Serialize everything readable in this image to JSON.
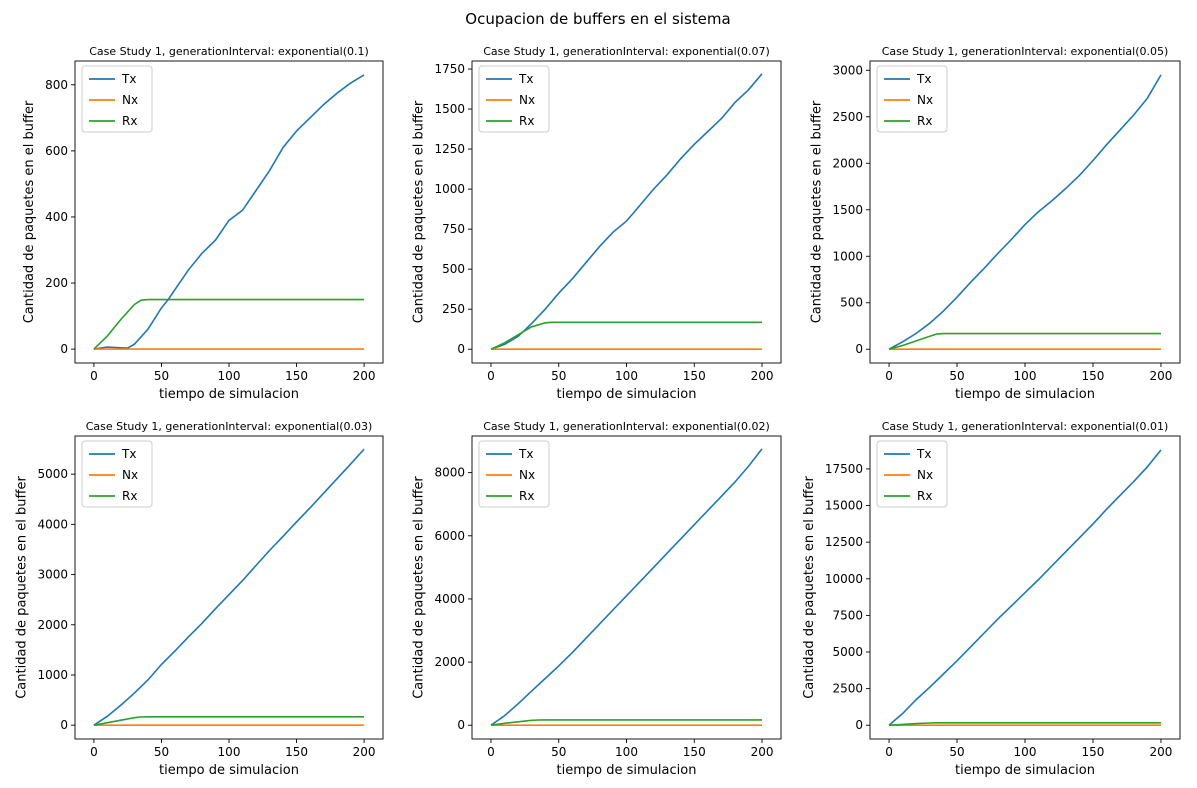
{
  "figure": {
    "title": "Ocupacion de buffers en el sistema"
  },
  "colors": {
    "Tx": "#1f77b4",
    "Nx": "#ff7f0e",
    "Rx": "#2ca02c"
  },
  "chart_data": [
    {
      "type": "line",
      "title": "Case Study 1, generationInterval: exponential(0.1)",
      "xlabel": "tiempo de simulacion",
      "ylabel": "Cantidad de paquetes en el buffer",
      "xlim": [
        -14,
        214
      ],
      "ylim": [
        -42,
        872
      ],
      "xticks": [
        0,
        50,
        100,
        150,
        200
      ],
      "yticks": [
        0,
        200,
        400,
        600,
        800
      ],
      "legend": "top-left",
      "grid": false,
      "series": [
        {
          "name": "Tx",
          "points": [
            [
              0,
              0
            ],
            [
              10,
              6
            ],
            [
              20,
              4
            ],
            [
              25,
              3
            ],
            [
              30,
              15
            ],
            [
              40,
              60
            ],
            [
              50,
              125
            ],
            [
              55,
              150
            ],
            [
              60,
              180
            ],
            [
              70,
              240
            ],
            [
              80,
              290
            ],
            [
              90,
              330
            ],
            [
              100,
              390
            ],
            [
              110,
              420
            ],
            [
              120,
              480
            ],
            [
              130,
              540
            ],
            [
              140,
              610
            ],
            [
              150,
              660
            ],
            [
              160,
              700
            ],
            [
              170,
              740
            ],
            [
              180,
              775
            ],
            [
              190,
              805
            ],
            [
              200,
              830
            ]
          ]
        },
        {
          "name": "Nx",
          "points": [
            [
              0,
              0
            ],
            [
              200,
              0
            ]
          ]
        },
        {
          "name": "Rx",
          "points": [
            [
              0,
              0
            ],
            [
              10,
              40
            ],
            [
              20,
              90
            ],
            [
              30,
              135
            ],
            [
              35,
              148
            ],
            [
              40,
              150
            ],
            [
              200,
              150
            ]
          ]
        }
      ]
    },
    {
      "type": "line",
      "title": "Case Study 1, generationInterval: exponential(0.07)",
      "xlabel": "tiempo de simulacion",
      "ylabel": "Cantidad de paquetes en el buffer",
      "xlim": [
        -14,
        214
      ],
      "ylim": [
        -86,
        1800
      ],
      "xticks": [
        0,
        50,
        100,
        150,
        200
      ],
      "yticks": [
        0,
        250,
        500,
        750,
        1000,
        1250,
        1500,
        1750
      ],
      "legend": "top-left",
      "grid": false,
      "series": [
        {
          "name": "Tx",
          "points": [
            [
              0,
              0
            ],
            [
              10,
              30
            ],
            [
              20,
              80
            ],
            [
              30,
              160
            ],
            [
              40,
              250
            ],
            [
              50,
              350
            ],
            [
              60,
              440
            ],
            [
              70,
              540
            ],
            [
              80,
              640
            ],
            [
              90,
              730
            ],
            [
              100,
              800
            ],
            [
              110,
              900
            ],
            [
              120,
              1000
            ],
            [
              130,
              1090
            ],
            [
              140,
              1190
            ],
            [
              150,
              1280
            ],
            [
              160,
              1360
            ],
            [
              170,
              1440
            ],
            [
              180,
              1540
            ],
            [
              190,
              1620
            ],
            [
              200,
              1720
            ]
          ]
        },
        {
          "name": "Nx",
          "points": [
            [
              0,
              0
            ],
            [
              200,
              0
            ]
          ]
        },
        {
          "name": "Rx",
          "points": [
            [
              0,
              0
            ],
            [
              10,
              40
            ],
            [
              20,
              90
            ],
            [
              30,
              140
            ],
            [
              40,
              165
            ],
            [
              45,
              168
            ],
            [
              200,
              168
            ]
          ]
        }
      ]
    },
    {
      "type": "line",
      "title": "Case Study 1, generationInterval: exponential(0.05)",
      "xlabel": "tiempo de simulacion",
      "ylabel": "Cantidad de paquetes en el buffer",
      "xlim": [
        -14,
        214
      ],
      "ylim": [
        -148,
        3100
      ],
      "xticks": [
        0,
        50,
        100,
        150,
        200
      ],
      "yticks": [
        0,
        500,
        1000,
        1500,
        2000,
        2500,
        3000
      ],
      "legend": "top-left",
      "grid": false,
      "series": [
        {
          "name": "Tx",
          "points": [
            [
              0,
              0
            ],
            [
              10,
              80
            ],
            [
              20,
              170
            ],
            [
              30,
              280
            ],
            [
              40,
              410
            ],
            [
              50,
              560
            ],
            [
              60,
              720
            ],
            [
              70,
              870
            ],
            [
              80,
              1030
            ],
            [
              90,
              1180
            ],
            [
              100,
              1340
            ],
            [
              110,
              1480
            ],
            [
              120,
              1600
            ],
            [
              130,
              1730
            ],
            [
              140,
              1870
            ],
            [
              150,
              2030
            ],
            [
              160,
              2200
            ],
            [
              170,
              2360
            ],
            [
              180,
              2520
            ],
            [
              190,
              2700
            ],
            [
              200,
              2950
            ]
          ]
        },
        {
          "name": "Nx",
          "points": [
            [
              0,
              0
            ],
            [
              200,
              0
            ]
          ]
        },
        {
          "name": "Rx",
          "points": [
            [
              0,
              0
            ],
            [
              10,
              40
            ],
            [
              20,
              90
            ],
            [
              30,
              140
            ],
            [
              35,
              163
            ],
            [
              40,
              168
            ],
            [
              200,
              168
            ]
          ]
        }
      ]
    },
    {
      "type": "line",
      "title": "Case Study 1, generationInterval: exponential(0.03)",
      "xlabel": "tiempo de simulacion",
      "ylabel": "Cantidad de paquetes en el buffer",
      "xlim": [
        -14,
        214
      ],
      "ylim": [
        -275,
        5760
      ],
      "xticks": [
        0,
        50,
        100,
        150,
        200
      ],
      "yticks": [
        0,
        1000,
        2000,
        3000,
        4000,
        5000
      ],
      "legend": "top-left",
      "grid": false,
      "series": [
        {
          "name": "Tx",
          "points": [
            [
              0,
              0
            ],
            [
              10,
              180
            ],
            [
              20,
              400
            ],
            [
              30,
              640
            ],
            [
              40,
              900
            ],
            [
              50,
              1210
            ],
            [
              60,
              1480
            ],
            [
              70,
              1760
            ],
            [
              80,
              2030
            ],
            [
              90,
              2320
            ],
            [
              100,
              2600
            ],
            [
              110,
              2880
            ],
            [
              120,
              3180
            ],
            [
              130,
              3480
            ],
            [
              140,
              3760
            ],
            [
              150,
              4050
            ],
            [
              160,
              4330
            ],
            [
              170,
              4620
            ],
            [
              180,
              4910
            ],
            [
              190,
              5200
            ],
            [
              200,
              5500
            ]
          ]
        },
        {
          "name": "Nx",
          "points": [
            [
              0,
              0
            ],
            [
              200,
              0
            ]
          ]
        },
        {
          "name": "Rx",
          "points": [
            [
              0,
              0
            ],
            [
              10,
              50
            ],
            [
              20,
              100
            ],
            [
              30,
              150
            ],
            [
              35,
              163
            ],
            [
              40,
              168
            ],
            [
              200,
              168
            ]
          ]
        }
      ]
    },
    {
      "type": "line",
      "title": "Case Study 1, generationInterval: exponential(0.02)",
      "xlabel": "tiempo de simulacion",
      "ylabel": "Cantidad de paquetes en el buffer",
      "xlim": [
        -14,
        214
      ],
      "ylim": [
        -436,
        9160
      ],
      "xticks": [
        0,
        50,
        100,
        150,
        200
      ],
      "yticks": [
        0,
        2000,
        4000,
        6000,
        8000
      ],
      "legend": "top-left",
      "grid": false,
      "series": [
        {
          "name": "Tx",
          "points": [
            [
              0,
              0
            ],
            [
              10,
              300
            ],
            [
              20,
              680
            ],
            [
              30,
              1080
            ],
            [
              40,
              1480
            ],
            [
              50,
              1880
            ],
            [
              60,
              2300
            ],
            [
              70,
              2750
            ],
            [
              80,
              3200
            ],
            [
              90,
              3650
            ],
            [
              100,
              4100
            ],
            [
              110,
              4550
            ],
            [
              120,
              5000
            ],
            [
              130,
              5450
            ],
            [
              140,
              5900
            ],
            [
              150,
              6350
            ],
            [
              160,
              6800
            ],
            [
              170,
              7250
            ],
            [
              180,
              7700
            ],
            [
              190,
              8200
            ],
            [
              200,
              8750
            ]
          ]
        },
        {
          "name": "Nx",
          "points": [
            [
              0,
              0
            ],
            [
              200,
              0
            ]
          ]
        },
        {
          "name": "Rx",
          "points": [
            [
              0,
              0
            ],
            [
              10,
              60
            ],
            [
              20,
              110
            ],
            [
              30,
              155
            ],
            [
              35,
              165
            ],
            [
              40,
              168
            ],
            [
              200,
              168
            ]
          ]
        }
      ]
    },
    {
      "type": "line",
      "title": "Case Study 1, generationInterval: exponential(0.01)",
      "xlabel": "tiempo de simulacion",
      "ylabel": "Cantidad de paquetes en el buffer",
      "xlim": [
        -14,
        214
      ],
      "ylim": [
        -940,
        19750
      ],
      "xticks": [
        0,
        50,
        100,
        150,
        200
      ],
      "yticks": [
        0,
        2500,
        5000,
        7500,
        10000,
        12500,
        15000,
        17500
      ],
      "legend": "top-left",
      "grid": false,
      "series": [
        {
          "name": "Tx",
          "points": [
            [
              0,
              0
            ],
            [
              10,
              800
            ],
            [
              20,
              1750
            ],
            [
              30,
              2600
            ],
            [
              40,
              3500
            ],
            [
              50,
              4400
            ],
            [
              60,
              5350
            ],
            [
              70,
              6300
            ],
            [
              80,
              7250
            ],
            [
              90,
              8150
            ],
            [
              100,
              9050
            ],
            [
              110,
              9950
            ],
            [
              120,
              10900
            ],
            [
              130,
              11850
            ],
            [
              140,
              12800
            ],
            [
              150,
              13750
            ],
            [
              160,
              14750
            ],
            [
              170,
              15700
            ],
            [
              180,
              16650
            ],
            [
              190,
              17650
            ],
            [
              200,
              18800
            ]
          ]
        },
        {
          "name": "Nx",
          "points": [
            [
              0,
              0
            ],
            [
              200,
              0
            ]
          ]
        },
        {
          "name": "Rx",
          "points": [
            [
              0,
              0
            ],
            [
              10,
              60
            ],
            [
              20,
              110
            ],
            [
              30,
              155
            ],
            [
              35,
              165
            ],
            [
              40,
              168
            ],
            [
              200,
              168
            ]
          ]
        }
      ]
    }
  ]
}
